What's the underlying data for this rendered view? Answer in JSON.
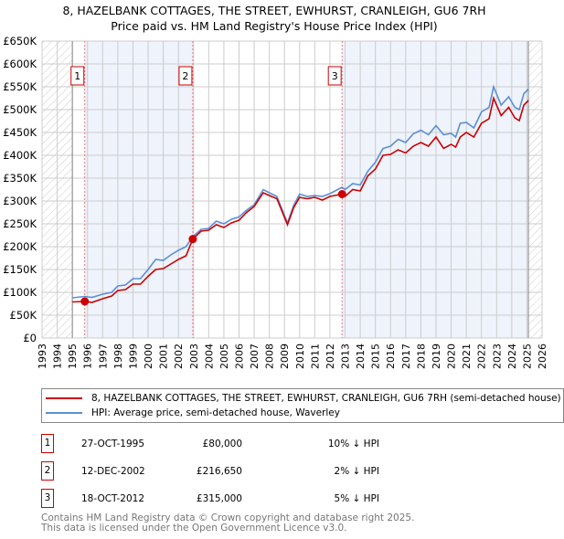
{
  "title_line1": "8, HAZELBANK COTTAGES, THE STREET, EWHURST, CRANLEIGH, GU6 7RH",
  "title_line2": "Price paid vs. HM Land Registry's House Price Index (HPI)",
  "chart_data": {
    "type": "line",
    "title": "8, HAZELBANK COTTAGES, THE STREET, EWHURST, CRANLEIGH, GU6 7RH — Price paid vs. HM Land Registry's House Price Index (HPI)",
    "xlim": [
      1993,
      2026
    ],
    "ylim": [
      0,
      650000
    ],
    "x_ticks": [
      "1993",
      "1994",
      "1995",
      "1996",
      "1997",
      "1998",
      "1999",
      "2000",
      "2001",
      "2002",
      "2003",
      "2004",
      "2005",
      "2006",
      "2007",
      "2008",
      "2009",
      "2010",
      "2011",
      "2012",
      "2013",
      "2014",
      "2015",
      "2016",
      "2017",
      "2018",
      "2019",
      "2020",
      "2021",
      "2022",
      "2023",
      "2024",
      "2025",
      "2026"
    ],
    "y_ticks": [
      {
        "v": 0,
        "label": "£0"
      },
      {
        "v": 50000,
        "label": "£50K"
      },
      {
        "v": 100000,
        "label": "£100K"
      },
      {
        "v": 150000,
        "label": "£150K"
      },
      {
        "v": 200000,
        "label": "£200K"
      },
      {
        "v": 250000,
        "label": "£250K"
      },
      {
        "v": 300000,
        "label": "£300K"
      },
      {
        "v": 350000,
        "label": "£350K"
      },
      {
        "v": 400000,
        "label": "£400K"
      },
      {
        "v": 450000,
        "label": "£450K"
      },
      {
        "v": 500000,
        "label": "£500K"
      },
      {
        "v": 550000,
        "label": "£550K"
      },
      {
        "v": 600000,
        "label": "£600K"
      },
      {
        "v": 650000,
        "label": "£650K"
      }
    ],
    "grid": true,
    "series": [
      {
        "name": "8, HAZELBANK COTTAGES, THE STREET, EWHURST, CRANLEIGH, GU6 7RH (semi-detached house)",
        "color": "#cc0000",
        "x": [
          1995,
          1995.8,
          1996.3,
          1997,
          1997.6,
          1998,
          1998.5,
          1999,
          1999.5,
          2000,
          2000.5,
          2001,
          2001.5,
          2002,
          2002.5,
          2002.95,
          2003.5,
          2004,
          2004.5,
          2005,
          2005.5,
          2006,
          2006.5,
          2007,
          2007.6,
          2008,
          2008.5,
          2009.2,
          2009.6,
          2010,
          2010.5,
          2011,
          2011.5,
          2012,
          2012.8,
          2013,
          2013.5,
          2014,
          2014.5,
          2015,
          2015.5,
          2016,
          2016.5,
          2017,
          2017.5,
          2018,
          2018.5,
          2019,
          2019.5,
          2020,
          2020.3,
          2020.6,
          2021,
          2021.5,
          2022,
          2022.5,
          2022.8,
          2023.3,
          2023.8,
          2024.2,
          2024.5,
          2024.8,
          2025.1
        ],
        "y": [
          79000,
          80000,
          78000,
          86000,
          92000,
          104000,
          106000,
          118000,
          118000,
          135000,
          150000,
          152000,
          162000,
          172000,
          180000,
          216650,
          234000,
          236000,
          248000,
          242000,
          252000,
          258000,
          275000,
          288000,
          318000,
          312000,
          305000,
          248000,
          285000,
          308000,
          305000,
          308000,
          302000,
          310000,
          315000,
          310000,
          325000,
          322000,
          355000,
          370000,
          400000,
          402000,
          412000,
          405000,
          420000,
          428000,
          420000,
          440000,
          415000,
          424000,
          418000,
          440000,
          450000,
          440000,
          470000,
          480000,
          525000,
          487000,
          505000,
          482000,
          476000,
          510000,
          520000
        ]
      },
      {
        "name": "HPI: Average price, semi-detached house, Waverley",
        "color": "#5b8fd6",
        "x": [
          1995,
          1995.8,
          1996.3,
          1997,
          1997.6,
          1998,
          1998.5,
          1999,
          1999.5,
          2000,
          2000.5,
          2001,
          2001.5,
          2002,
          2002.5,
          2002.95,
          2003.5,
          2004,
          2004.5,
          2005,
          2005.5,
          2006,
          2006.5,
          2007,
          2007.6,
          2008,
          2008.5,
          2009.2,
          2009.6,
          2010,
          2010.5,
          2011,
          2011.5,
          2012,
          2012.8,
          2013,
          2013.5,
          2014,
          2014.5,
          2015,
          2015.5,
          2016,
          2016.5,
          2017,
          2017.5,
          2018,
          2018.5,
          2019,
          2019.5,
          2020,
          2020.3,
          2020.6,
          2021,
          2021.5,
          2022,
          2022.5,
          2022.8,
          2023.3,
          2023.8,
          2024.2,
          2024.5,
          2024.8,
          2025.1
        ],
        "y": [
          88000,
          91000,
          89000,
          96000,
          100000,
          114000,
          116000,
          130000,
          130000,
          150000,
          172000,
          170000,
          182000,
          192000,
          200000,
          222000,
          238000,
          240000,
          256000,
          250000,
          260000,
          265000,
          280000,
          292000,
          325000,
          318000,
          310000,
          252000,
          290000,
          315000,
          310000,
          312000,
          310000,
          316000,
          330000,
          325000,
          338000,
          335000,
          365000,
          385000,
          415000,
          420000,
          435000,
          428000,
          447000,
          455000,
          445000,
          465000,
          445000,
          448000,
          440000,
          470000,
          472000,
          460000,
          495000,
          505000,
          550000,
          510000,
          528000,
          505000,
          500000,
          535000,
          545000
        ]
      }
    ],
    "sales": [
      {
        "label": "1",
        "x": 1995.82,
        "y": 80000
      },
      {
        "label": "2",
        "x": 2002.95,
        "y": 216650
      },
      {
        "label": "3",
        "x": 2012.8,
        "y": 315000
      }
    ],
    "hatched_ranges": [
      [
        1993,
        1995
      ],
      [
        2025.1,
        2026
      ]
    ]
  },
  "legend": {
    "property": "8, HAZELBANK COTTAGES, THE STREET, EWHURST, CRANLEIGH, GU6 7RH (semi-detached house)",
    "hpi": "HPI: Average price, semi-detached house, Waverley"
  },
  "transactions": [
    {
      "num": "1",
      "date": "27-OCT-1995",
      "price": "£80,000",
      "hpi": "10% ↓ HPI"
    },
    {
      "num": "2",
      "date": "12-DEC-2002",
      "price": "£216,650",
      "hpi": "2% ↓ HPI"
    },
    {
      "num": "3",
      "date": "18-OCT-2012",
      "price": "£315,000",
      "hpi": "5% ↓ HPI"
    }
  ],
  "footer": {
    "line1": "Contains HM Land Registry data © Crown copyright and database right 2025.",
    "line2": "This data is licensed under the Open Government Licence v3.0."
  }
}
